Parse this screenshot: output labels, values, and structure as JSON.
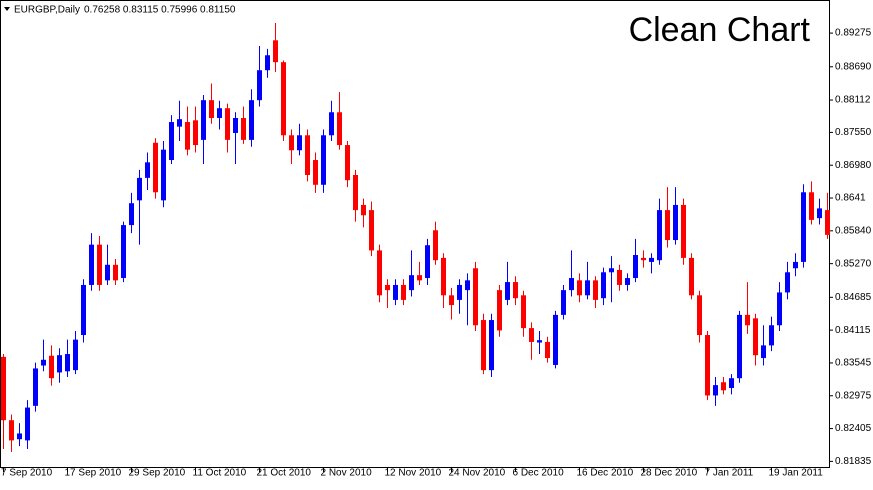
{
  "chart_data": {
    "type": "candlestick",
    "symbol": "EURGBP,Daily",
    "header_values": "0.76258 0.83115 0.75996 0.81150",
    "annotation": "Clean Chart",
    "categories": [
      "7 Sep 2010",
      null,
      null,
      null,
      null,
      null,
      null,
      null,
      "17 Sep 2010",
      null,
      null,
      null,
      null,
      null,
      null,
      null,
      "29 Sep 2010",
      null,
      null,
      null,
      null,
      null,
      null,
      null,
      "11 Oct 2010",
      null,
      null,
      null,
      null,
      null,
      null,
      null,
      "21 Oct 2010",
      null,
      null,
      null,
      null,
      null,
      null,
      null,
      "2 Nov 2010",
      null,
      null,
      null,
      null,
      null,
      null,
      null,
      "12 Nov 2010",
      null,
      null,
      null,
      null,
      null,
      null,
      null,
      "24 Nov 2010",
      null,
      null,
      null,
      null,
      null,
      null,
      null,
      "6 Dec 2010",
      null,
      null,
      null,
      null,
      null,
      null,
      null,
      "16 Dec 2010",
      null,
      null,
      null,
      null,
      null,
      null,
      null,
      "28 Dec 2010",
      null,
      null,
      null,
      null,
      null,
      null,
      null,
      "7 Jan 2011",
      null,
      null,
      null,
      null,
      null,
      null,
      null,
      "19 Jan 2011",
      null,
      null,
      null,
      null,
      null,
      null,
      null
    ],
    "open": [
      0.8365,
      0.8255,
      0.8222,
      0.822,
      0.828,
      0.835,
      0.8367,
      0.8338,
      0.834,
      0.8342,
      0.8403,
      0.849,
      0.856,
      0.8498,
      0.8525,
      0.8502,
      0.8594,
      0.8637,
      0.8676,
      0.8737,
      0.8637,
      0.8707,
      0.8765,
      0.8773,
      0.8776,
      0.8742,
      0.8811,
      0.878,
      0.8797,
      0.8754,
      0.878,
      0.8742,
      0.8811,
      0.8863,
      0.8915,
      0.8877,
      0.875,
      0.8724,
      0.875,
      0.8707,
      0.8664,
      0.875,
      0.879,
      0.8733,
      0.8681,
      0.8629,
      0.862,
      0.855,
      0.849,
      0.8464,
      0.849,
      0.8481,
      0.8507,
      0.8502,
      0.8585,
      0.8537,
      0.8472,
      0.8464,
      0.8481,
      0.8519,
      0.8429,
      0.8342,
      0.8481,
      0.8464,
      0.8495,
      0.8472,
      0.8415,
      0.839,
      0.8391,
      0.8351,
      0.8438,
      0.8481,
      0.8498,
      0.8472,
      0.8498,
      0.8467,
      0.8512,
      0.8516,
      0.849,
      0.8502,
      0.8537,
      0.853,
      0.8533,
      0.862,
      0.8568,
      0.8629,
      0.8537,
      0.8472,
      0.8403,
      0.8298,
      0.8321,
      0.8311,
      0.8328,
      0.8438,
      0.8432,
      0.8363,
      0.8385,
      0.842,
      0.8477,
      0.8519,
      0.853,
      0.8651,
      0.8606,
      0.862
    ],
    "high": [
      0.837,
      0.8265,
      0.825,
      0.829,
      0.8355,
      0.8395,
      0.8385,
      0.838,
      0.8395,
      0.841,
      0.85,
      0.858,
      0.8575,
      0.856,
      0.8535,
      0.86,
      0.865,
      0.869,
      0.872,
      0.8745,
      0.874,
      0.8785,
      0.881,
      0.88,
      0.88,
      0.882,
      0.884,
      0.881,
      0.8805,
      0.879,
      0.88,
      0.883,
      0.8905,
      0.89,
      0.8945,
      0.888,
      0.876,
      0.877,
      0.876,
      0.872,
      0.876,
      0.881,
      0.8825,
      0.874,
      0.869,
      0.864,
      0.8635,
      0.856,
      0.85,
      0.85,
      0.85,
      0.855,
      0.853,
      0.857,
      0.86,
      0.8545,
      0.8485,
      0.85,
      0.851,
      0.853,
      0.844,
      0.844,
      0.849,
      0.853,
      0.8505,
      0.848,
      0.8425,
      0.841,
      0.84,
      0.8445,
      0.849,
      0.855,
      0.851,
      0.853,
      0.8505,
      0.852,
      0.854,
      0.8525,
      0.851,
      0.857,
      0.855,
      0.8545,
      0.864,
      0.866,
      0.866,
      0.864,
      0.8545,
      0.848,
      0.841,
      0.833,
      0.833,
      0.8335,
      0.8445,
      0.8495,
      0.844,
      0.842,
      0.8435,
      0.8495,
      0.853,
      0.8545,
      0.8665,
      0.867,
      0.864,
      0.865
    ],
    "low": [
      0.8205,
      0.82,
      0.821,
      0.8205,
      0.827,
      0.834,
      0.8315,
      0.832,
      0.833,
      0.8335,
      0.839,
      0.848,
      0.848,
      0.849,
      0.849,
      0.8495,
      0.858,
      0.856,
      0.8655,
      0.864,
      0.8625,
      0.87,
      0.874,
      0.8715,
      0.872,
      0.87,
      0.877,
      0.876,
      0.872,
      0.87,
      0.8735,
      0.873,
      0.88,
      0.885,
      0.886,
      0.874,
      0.87,
      0.8715,
      0.867,
      0.865,
      0.865,
      0.874,
      0.8725,
      0.866,
      0.86,
      0.859,
      0.854,
      0.846,
      0.845,
      0.8455,
      0.8455,
      0.847,
      0.849,
      0.849,
      0.8525,
      0.845,
      0.843,
      0.844,
      0.842,
      0.841,
      0.8335,
      0.833,
      0.84,
      0.8455,
      0.8455,
      0.84,
      0.836,
      0.837,
      0.8355,
      0.8345,
      0.843,
      0.847,
      0.846,
      0.8465,
      0.845,
      0.8455,
      0.846,
      0.848,
      0.848,
      0.8495,
      0.852,
      0.851,
      0.8525,
      0.8555,
      0.856,
      0.8525,
      0.8465,
      0.839,
      0.829,
      0.828,
      0.83,
      0.83,
      0.832,
      0.8405,
      0.835,
      0.835,
      0.8375,
      0.841,
      0.8465,
      0.8505,
      0.852,
      0.8595,
      0.8595,
      0.857
    ],
    "close": [
      0.8255,
      0.822,
      0.8232,
      0.8277,
      0.8345,
      0.836,
      0.8328,
      0.8368,
      0.837,
      0.8395,
      0.849,
      0.856,
      0.849,
      0.8525,
      0.8498,
      0.8594,
      0.8632,
      0.8676,
      0.8703,
      0.8651,
      0.8725,
      0.8773,
      0.8778,
      0.8725,
      0.8733,
      0.8811,
      0.878,
      0.8797,
      0.8742,
      0.878,
      0.8742,
      0.8811,
      0.8863,
      0.8889,
      0.8877,
      0.875,
      0.8724,
      0.875,
      0.8681,
      0.8664,
      0.875,
      0.879,
      0.8733,
      0.8672,
      0.862,
      0.8611,
      0.855,
      0.8472,
      0.8481,
      0.849,
      0.8464,
      0.8507,
      0.8498,
      0.8559,
      0.8533,
      0.8472,
      0.8455,
      0.849,
      0.8498,
      0.842,
      0.8342,
      0.8429,
      0.8411,
      0.8495,
      0.8467,
      0.8415,
      0.8391,
      0.8394,
      0.8363,
      0.8438,
      0.8481,
      0.8502,
      0.8472,
      0.8498,
      0.8464,
      0.8512,
      0.8519,
      0.849,
      0.8502,
      0.8542,
      0.8533,
      0.8537,
      0.862,
      0.8568,
      0.8629,
      0.8537,
      0.8472,
      0.8403,
      0.8298,
      0.8316,
      0.8307,
      0.8328,
      0.8438,
      0.842,
      0.8368,
      0.8385,
      0.842,
      0.8477,
      0.8512,
      0.853,
      0.8651,
      0.8603,
      0.8623,
      0.8577
    ],
    "up_color": "#0000ff",
    "down_color": "#ff0000",
    "ylim": [
      0.8172,
      0.8985
    ],
    "yticks": [
      0.89275,
      {
        "value": 0.8869,
        "label": "0.88690"
      },
      0.88112,
      {
        "value": 0.8755,
        "label": "0.87550"
      },
      {
        "value": 0.8698,
        "label": "0.86980"
      },
      0.8641,
      {
        "value": 0.8584,
        "label": "0.85840"
      },
      {
        "value": 0.8527,
        "label": "0.85270"
      },
      0.84685,
      0.84115,
      0.83545,
      0.82975,
      0.82405,
      0.81835
    ]
  }
}
